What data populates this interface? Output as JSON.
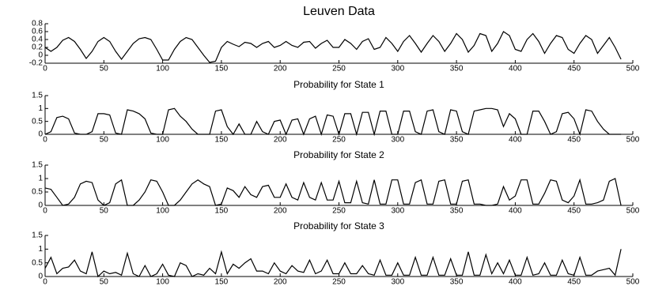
{
  "chart_data": [
    {
      "type": "line",
      "title": "Leuven Data",
      "color": "#000000",
      "x": [
        0,
        5,
        10,
        15,
        20,
        25,
        30,
        35,
        40,
        45,
        50,
        55,
        60,
        65,
        70,
        75,
        80,
        85,
        90,
        95,
        100,
        105,
        110,
        115,
        120,
        125,
        130,
        135,
        140,
        145,
        150,
        155,
        160,
        165,
        170,
        175,
        180,
        185,
        190,
        195,
        200,
        205,
        210,
        215,
        220,
        225,
        230,
        235,
        240,
        245,
        250,
        255,
        260,
        265,
        270,
        275,
        280,
        285,
        290,
        295,
        300,
        305,
        310,
        315,
        320,
        325,
        330,
        335,
        340,
        345,
        350,
        355,
        360,
        365,
        370,
        375,
        380,
        385,
        390,
        395,
        400,
        405,
        410,
        415,
        420,
        425,
        430,
        435,
        440,
        445,
        450,
        455,
        460,
        465,
        470,
        475,
        480,
        485,
        490
      ],
      "values": [
        0.2,
        0.1,
        0.2,
        0.38,
        0.45,
        0.35,
        0.15,
        -0.08,
        0.1,
        0.35,
        0.45,
        0.35,
        0.1,
        -0.1,
        0.1,
        0.3,
        0.42,
        0.45,
        0.4,
        0.15,
        -0.12,
        -0.12,
        0.15,
        0.35,
        0.45,
        0.4,
        0.2,
        0,
        -0.18,
        -0.15,
        0.2,
        0.35,
        0.28,
        0.22,
        0.33,
        0.3,
        0.2,
        0.3,
        0.35,
        0.2,
        0.25,
        0.35,
        0.25,
        0.2,
        0.33,
        0.35,
        0.18,
        0.3,
        0.38,
        0.2,
        0.2,
        0.4,
        0.3,
        0.15,
        0.35,
        0.42,
        0.15,
        0.2,
        0.45,
        0.3,
        0.1,
        0.35,
        0.5,
        0.3,
        0.08,
        0.3,
        0.5,
        0.35,
        0.1,
        0.3,
        0.55,
        0.4,
        0.08,
        0.25,
        0.55,
        0.5,
        0.1,
        0.3,
        0.6,
        0.5,
        0.15,
        0.1,
        0.4,
        0.55,
        0.35,
        0.05,
        0.3,
        0.5,
        0.45,
        0.15,
        0.05,
        0.3,
        0.5,
        0.4,
        0.05,
        0.25,
        0.45,
        0.2,
        -0.1
      ],
      "xlim": [
        0,
        500
      ],
      "xticks": [
        0,
        50,
        100,
        150,
        200,
        250,
        300,
        350,
        400,
        450,
        500
      ],
      "ylim": [
        -0.2,
        0.8
      ],
      "yticks": [
        -0.2,
        0,
        0.2,
        0.4,
        0.6,
        0.8
      ]
    },
    {
      "type": "line",
      "title": "Probability for State 1",
      "color": "#000000",
      "x": [
        0,
        5,
        10,
        15,
        20,
        25,
        30,
        35,
        40,
        45,
        50,
        55,
        60,
        65,
        70,
        75,
        80,
        85,
        90,
        95,
        100,
        105,
        110,
        115,
        120,
        125,
        130,
        135,
        140,
        145,
        150,
        155,
        160,
        165,
        170,
        175,
        180,
        185,
        190,
        195,
        200,
        205,
        210,
        215,
        220,
        225,
        230,
        235,
        240,
        245,
        250,
        255,
        260,
        265,
        270,
        275,
        280,
        285,
        290,
        295,
        300,
        305,
        310,
        315,
        320,
        325,
        330,
        335,
        340,
        345,
        350,
        355,
        360,
        365,
        370,
        375,
        380,
        385,
        390,
        395,
        400,
        405,
        410,
        415,
        420,
        425,
        430,
        435,
        440,
        445,
        450,
        455,
        460,
        465,
        470,
        475,
        480,
        485,
        490
      ],
      "values": [
        0,
        0.1,
        0.65,
        0.7,
        0.6,
        0.05,
        0,
        0,
        0.1,
        0.8,
        0.8,
        0.75,
        0.05,
        0,
        0.95,
        0.9,
        0.8,
        0.6,
        0.05,
        0,
        0,
        0.95,
        1,
        0.7,
        0.5,
        0.2,
        0,
        0,
        0,
        0.9,
        0.95,
        0.3,
        0,
        0.4,
        0,
        0,
        0.5,
        0.1,
        0,
        0.5,
        0.55,
        0,
        0.55,
        0.6,
        0,
        0.6,
        0.7,
        0,
        0.75,
        0.7,
        0,
        0.8,
        0.8,
        0,
        0.85,
        0.85,
        0,
        0.9,
        0.9,
        0,
        0,
        0.9,
        0.9,
        0.1,
        0,
        0.9,
        0.95,
        0.1,
        0,
        0.95,
        0.9,
        0.1,
        0,
        0.9,
        0.95,
        1,
        1,
        0.95,
        0.3,
        0.8,
        0.6,
        0,
        0,
        0.9,
        0.9,
        0.5,
        0,
        0.1,
        0.8,
        0.85,
        0.6,
        0,
        0.95,
        0.9,
        0.5,
        0.2,
        0,
        0,
        0
      ],
      "xlim": [
        0,
        500
      ],
      "xticks": [
        0,
        50,
        100,
        150,
        200,
        250,
        300,
        350,
        400,
        450,
        500
      ],
      "ylim": [
        0,
        1.5
      ],
      "yticks": [
        0,
        0.5,
        1,
        1.5
      ]
    },
    {
      "type": "line",
      "title": "Probability for State 2",
      "color": "#000000",
      "x": [
        0,
        5,
        10,
        15,
        20,
        25,
        30,
        35,
        40,
        45,
        50,
        55,
        60,
        65,
        70,
        75,
        80,
        85,
        90,
        95,
        100,
        105,
        110,
        115,
        120,
        125,
        130,
        135,
        140,
        145,
        150,
        155,
        160,
        165,
        170,
        175,
        180,
        185,
        190,
        195,
        200,
        205,
        210,
        215,
        220,
        225,
        230,
        235,
        240,
        245,
        250,
        255,
        260,
        265,
        270,
        275,
        280,
        285,
        290,
        295,
        300,
        305,
        310,
        315,
        320,
        325,
        330,
        335,
        340,
        345,
        350,
        355,
        360,
        365,
        370,
        375,
        380,
        385,
        390,
        395,
        400,
        405,
        410,
        415,
        420,
        425,
        430,
        435,
        440,
        445,
        450,
        455,
        460,
        465,
        470,
        475,
        480,
        485,
        490
      ],
      "values": [
        0.65,
        0.6,
        0.3,
        0,
        0.05,
        0.3,
        0.8,
        0.9,
        0.85,
        0.2,
        0,
        0.1,
        0.8,
        0.95,
        0,
        0,
        0.2,
        0.5,
        0.95,
        0.9,
        0.5,
        0,
        0,
        0.2,
        0.5,
        0.8,
        0.95,
        0.8,
        0.7,
        0,
        0.05,
        0.65,
        0.55,
        0.3,
        0.7,
        0.4,
        0.3,
        0.7,
        0.75,
        0.3,
        0.3,
        0.8,
        0.3,
        0.2,
        0.85,
        0.3,
        0.2,
        0.85,
        0.2,
        0.2,
        0.9,
        0.1,
        0.1,
        0.9,
        0.1,
        0.05,
        0.95,
        0.05,
        0.05,
        0.95,
        0.95,
        0.05,
        0.05,
        0.85,
        0.95,
        0.05,
        0.05,
        0.9,
        0.95,
        0.05,
        0.05,
        0.9,
        0.95,
        0.05,
        0.05,
        0,
        0,
        0.05,
        0.7,
        0.2,
        0.35,
        0.95,
        0.95,
        0.05,
        0.05,
        0.45,
        0.95,
        0.9,
        0.2,
        0.1,
        0.35,
        0.95,
        0.05,
        0.05,
        0.1,
        0.2,
        0.9,
        1,
        0
      ],
      "xlim": [
        0,
        500
      ],
      "xticks": [
        0,
        50,
        100,
        150,
        200,
        250,
        300,
        350,
        400,
        450,
        500
      ],
      "ylim": [
        0,
        1.5
      ],
      "yticks": [
        0,
        0.5,
        1,
        1.5
      ]
    },
    {
      "type": "line",
      "title": "Probability for State 3",
      "color": "#000000",
      "x": [
        0,
        5,
        10,
        15,
        20,
        25,
        30,
        35,
        40,
        45,
        50,
        55,
        60,
        65,
        70,
        75,
        80,
        85,
        90,
        95,
        100,
        105,
        110,
        115,
        120,
        125,
        130,
        135,
        140,
        145,
        150,
        155,
        160,
        165,
        170,
        175,
        180,
        185,
        190,
        195,
        200,
        205,
        210,
        215,
        220,
        225,
        230,
        235,
        240,
        245,
        250,
        255,
        260,
        265,
        270,
        275,
        280,
        285,
        290,
        295,
        300,
        305,
        310,
        315,
        320,
        325,
        330,
        335,
        340,
        345,
        350,
        355,
        360,
        365,
        370,
        375,
        380,
        385,
        390,
        395,
        400,
        405,
        410,
        415,
        420,
        425,
        430,
        435,
        440,
        445,
        450,
        455,
        460,
        465,
        470,
        475,
        480,
        485,
        490
      ],
      "values": [
        0.3,
        0.7,
        0.1,
        0.3,
        0.35,
        0.6,
        0.2,
        0.1,
        0.9,
        0,
        0.2,
        0.1,
        0.15,
        0.05,
        0.85,
        0.1,
        0,
        0.4,
        0,
        0.1,
        0.45,
        0.05,
        0,
        0.5,
        0.4,
        0,
        0.1,
        0.05,
        0.3,
        0.1,
        0.9,
        0.1,
        0.45,
        0.3,
        0.5,
        0.65,
        0.2,
        0.2,
        0.1,
        0.5,
        0.2,
        0.1,
        0.4,
        0.2,
        0.15,
        0.6,
        0.1,
        0.2,
        0.6,
        0.1,
        0.1,
        0.5,
        0.1,
        0.1,
        0.4,
        0.1,
        0.05,
        0.6,
        0.05,
        0.05,
        0.5,
        0.05,
        0.05,
        0.7,
        0.05,
        0.05,
        0.7,
        0.05,
        0.05,
        0.65,
        0.05,
        0.05,
        0.9,
        0.05,
        0.05,
        0.8,
        0.1,
        0.5,
        0.1,
        0.6,
        0.05,
        0.05,
        0.7,
        0.05,
        0.1,
        0.5,
        0.05,
        0.05,
        0.6,
        0.1,
        0.05,
        0.7,
        0.05,
        0.05,
        0.2,
        0.25,
        0.3,
        0.05,
        1
      ],
      "xlim": [
        0,
        500
      ],
      "xticks": [
        0,
        50,
        100,
        150,
        200,
        250,
        300,
        350,
        400,
        450,
        500
      ],
      "ylim": [
        0,
        1.5
      ],
      "yticks": [
        0,
        0.5,
        1,
        1.5
      ]
    }
  ]
}
